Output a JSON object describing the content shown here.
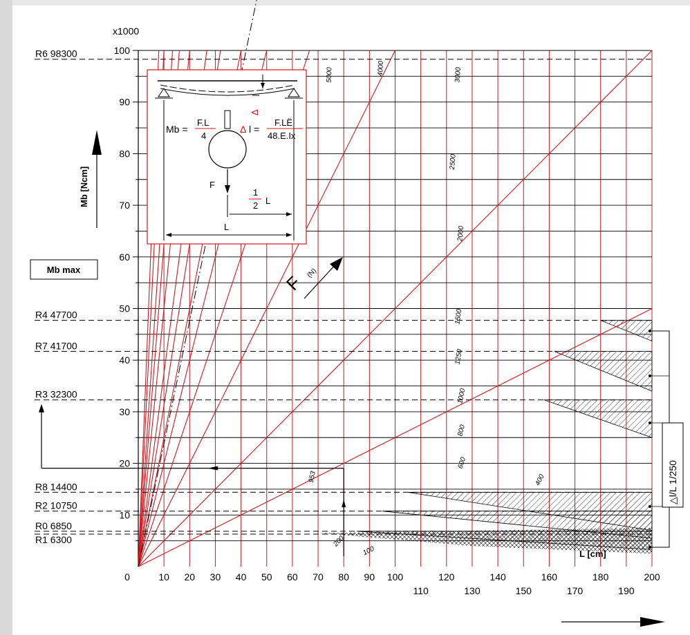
{
  "chart_data": {
    "type": "line",
    "y_multiplier_label": "x1000",
    "x_ticks": [
      0,
      10,
      20,
      30,
      40,
      50,
      60,
      70,
      80,
      90,
      100,
      110,
      120,
      130,
      140,
      150,
      160,
      170,
      180,
      190,
      200
    ],
    "y_ticks": [
      10,
      20,
      30,
      40,
      50,
      60,
      70,
      80,
      90,
      100
    ],
    "xlim": [
      0,
      200
    ],
    "ylim": [
      0,
      100
    ],
    "x_axis_label": "L  [cm]",
    "y_axis_label": "Mb  [Ncm]",
    "mbmax_label": "Mb max",
    "force_label": "F",
    "force_unit": "(N)",
    "deflection_label": "△l/L 1/250",
    "force_lines": [
      100,
      200,
      400,
      600,
      800,
      953,
      1000,
      1250,
      1500,
      2000,
      2500,
      3000,
      4000,
      5000
    ],
    "force_line_labels": [
      {
        "label": "5000",
        "x": 75,
        "y": 93.75
      },
      {
        "label": "4000",
        "x": 95,
        "y": 95
      },
      {
        "label": "3000",
        "x": 125,
        "y": 93.75
      },
      {
        "label": "2500",
        "x": 123,
        "y": 76.9
      },
      {
        "label": "2000",
        "x": 126,
        "y": 63
      },
      {
        "label": "1500",
        "x": 125,
        "y": 46.9
      },
      {
        "label": "1250",
        "x": 125,
        "y": 39.1
      },
      {
        "label": "1000",
        "x": 126,
        "y": 31.5
      },
      {
        "label": "800",
        "x": 126,
        "y": 25.2
      },
      {
        "label": "600",
        "x": 126,
        "y": 18.9
      },
      {
        "label": "953",
        "x": 68,
        "y": 16.2
      },
      {
        "label": "400",
        "x": 156,
        "y": 15.6
      },
      {
        "label": "200",
        "x": 77,
        "y": 3.85
      },
      {
        "label": "100",
        "x": 88,
        "y": 2.2
      }
    ],
    "rail_profiles": [
      {
        "name": "R6",
        "mb": 98300,
        "label": "R6 98300"
      },
      {
        "name": "R4",
        "mb": 47700,
        "label": "R4 47700"
      },
      {
        "name": "R7",
        "mb": 41700,
        "label": "R7 41700"
      },
      {
        "name": "R3",
        "mb": 32300,
        "label": "R3 32300"
      },
      {
        "name": "R8",
        "mb": 14400,
        "label": "R8 14400"
      },
      {
        "name": "R2",
        "mb": 10750,
        "label": "R2 10750"
      },
      {
        "name": "R0",
        "mb": 6850,
        "label": "R0 6850"
      },
      {
        "name": "R1",
        "mb": 6300,
        "label": "R1 6300"
      }
    ],
    "example": {
      "L": 80,
      "F": 953,
      "Mb": 19060
    },
    "grid": true,
    "colors": {
      "force_line": "#d9141b",
      "grid": "#000000",
      "arrow_red": "#d9141b"
    }
  },
  "inset": {
    "mb_lhs": "Mb =",
    "mb_num": "F.L",
    "mb_den": "4",
    "dl_lhs": "l =",
    "dl_num": "F.LË",
    "dl_den": "48.E.Ix",
    "f_label": "F",
    "half_num": "1",
    "half_den": "2",
    "half_L": "L",
    "L_label": "L",
    "delta_glyph": "Δ"
  }
}
